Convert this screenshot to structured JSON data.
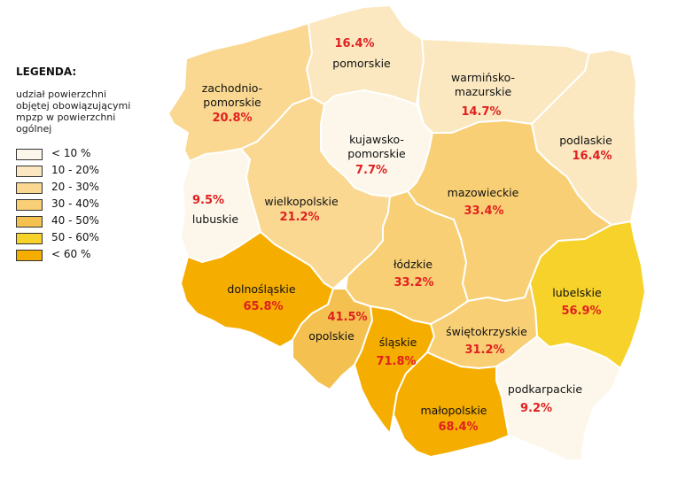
{
  "legend": {
    "title": "LEGENDA:",
    "description": [
      "udział powierzchni",
      "objętej obowiązującymi",
      "mpzp w powierzchni",
      "ogólnej"
    ],
    "items": [
      {
        "label": "< 10 %",
        "color": "#fcf7ea"
      },
      {
        "label": "10 - 20%",
        "color": "#fbe8c0"
      },
      {
        "label": "20 - 30%",
        "color": "#fad891"
      },
      {
        "label": "30 - 40%",
        "color": "#f8cf74"
      },
      {
        "label": "40 - 50%",
        "color": "#f4c150"
      },
      {
        "label": "50 - 60%",
        "color": "#f7d22a"
      },
      {
        "label": "< 60 %",
        "color": "#f5ad00"
      }
    ]
  },
  "regions": {
    "zachodniopomorskie": {
      "name1": "zachodnio-",
      "name2": "pomorskie",
      "value": "20.8%",
      "fill": "#fad891"
    },
    "pomorskie": {
      "name": "pomorskie",
      "value": "16.4%",
      "fill": "#fbe8c0"
    },
    "warminsko": {
      "name1": "warmińsko-",
      "name2": "mazurskie",
      "value": "14.7%",
      "fill": "#fbe8c0"
    },
    "podlaskie": {
      "name": "podlaskie",
      "value": "16.4%",
      "fill": "#fbe8c0"
    },
    "kujawsko": {
      "name1": "kujawsko-",
      "name2": "pomorskie",
      "value": "7.7%",
      "fill": "#fcf7ea"
    },
    "lubuskie": {
      "name": "lubuskie",
      "value": "9.5%",
      "fill": "#fcf7ea"
    },
    "wielkopolskie": {
      "name": "wielkopolskie",
      "value": "21.2%",
      "fill": "#fad891"
    },
    "mazowieckie": {
      "name": "mazowieckie",
      "value": "33.4%",
      "fill": "#f8cf74"
    },
    "lodzkie": {
      "name": "łódzkie",
      "value": "33.2%",
      "fill": "#f8cf74"
    },
    "lubelskie": {
      "name": "lubelskie",
      "value": "56.9%",
      "fill": "#f7d22a"
    },
    "dolnoslaskie": {
      "name": "dolnośląskie",
      "value": "65.8%",
      "fill": "#f5ad00"
    },
    "opolskie": {
      "name": "opolskie",
      "value": "41.5%",
      "fill": "#f4c150"
    },
    "slaskie": {
      "name": "śląskie",
      "value": "71.8%",
      "fill": "#f5ad00"
    },
    "swietokrzyskie": {
      "name": "świętokrzyskie",
      "value": "31.2%",
      "fill": "#f8cf74"
    },
    "podkarpackie": {
      "name": "podkarpackie",
      "value": "9.2%",
      "fill": "#fcf7ea"
    },
    "malopolskie": {
      "name": "małopolskie",
      "value": "68.4%",
      "fill": "#f5ad00"
    }
  }
}
